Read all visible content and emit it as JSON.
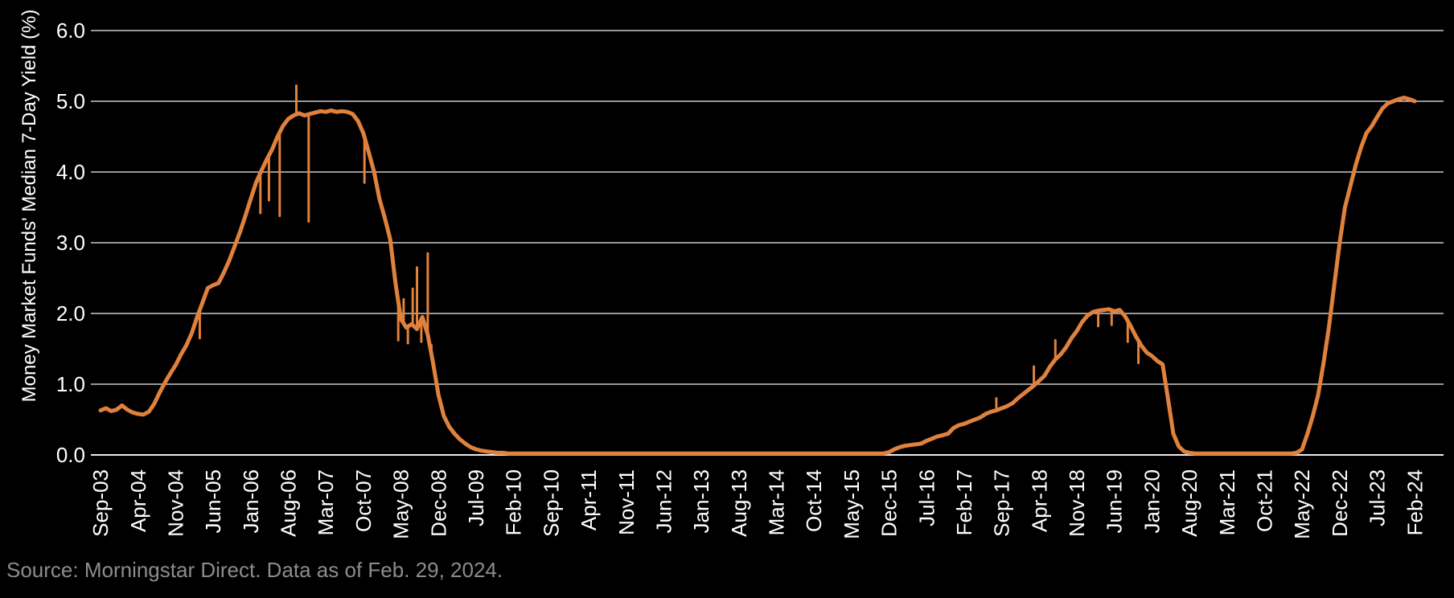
{
  "source_note": "Source: Morningstar Direct. Data as of Feb. 29, 2024.",
  "chart_data": {
    "type": "line",
    "title": "",
    "xlabel": "",
    "ylabel": "Money Market Funds' Median 7-Day Yield (%)",
    "ylim": [
      0,
      6
    ],
    "grid": true,
    "legend": false,
    "y_ticks": [
      "6.0",
      "5.0",
      "4.0",
      "3.0",
      "2.0",
      "1.0",
      "0.0"
    ],
    "x_tick_labels": [
      "Sep-03",
      "Apr-04",
      "Nov-04",
      "Jun-05",
      "Jan-06",
      "Aug-06",
      "Mar-07",
      "Oct-07",
      "May-08",
      "Dec-08",
      "Jul-09",
      "Feb-10",
      "Sep-10",
      "Apr-11",
      "Nov-11",
      "Jun-12",
      "Jan-13",
      "Aug-13",
      "Mar-14",
      "Oct-14",
      "May-15",
      "Dec-15",
      "Jul-16",
      "Feb-17",
      "Sep-17",
      "Apr-18",
      "Nov-18",
      "Jun-19",
      "Jan-20",
      "Aug-20",
      "Mar-21",
      "Oct-21",
      "May-22",
      "Dec-22",
      "Jul-23",
      "Feb-24"
    ],
    "x_tick_interval_months": 7,
    "x_start": "Sep-03",
    "x_end": "Feb-24",
    "series": [
      {
        "name": "Money Market Funds' Median 7-Day Yield (%)",
        "frequency": "monthly",
        "monthly_values": [
          0.63,
          0.66,
          0.62,
          0.64,
          0.7,
          0.64,
          0.6,
          0.58,
          0.57,
          0.61,
          0.72,
          0.88,
          1.02,
          1.15,
          1.27,
          1.42,
          1.55,
          1.72,
          1.95,
          2.15,
          2.36,
          2.4,
          2.43,
          2.58,
          2.75,
          2.95,
          3.15,
          3.38,
          3.62,
          3.85,
          4.02,
          4.18,
          4.32,
          4.5,
          4.65,
          4.75,
          4.8,
          4.83,
          4.8,
          4.82,
          4.84,
          4.86,
          4.85,
          4.87,
          4.85,
          4.86,
          4.85,
          4.82,
          4.72,
          4.55,
          4.28,
          4.0,
          3.62,
          3.35,
          3.05,
          2.42,
          1.92,
          1.8,
          1.85,
          1.78,
          1.95,
          1.7,
          1.3,
          0.85,
          0.55,
          0.4,
          0.3,
          0.22,
          0.16,
          0.11,
          0.08,
          0.06,
          0.05,
          0.04,
          0.03,
          0.03,
          0.02,
          0.02,
          0.02,
          0.02,
          0.02,
          0.02,
          0.02,
          0.02,
          0.02,
          0.02,
          0.02,
          0.02,
          0.02,
          0.02,
          0.02,
          0.02,
          0.02,
          0.02,
          0.02,
          0.02,
          0.02,
          0.02,
          0.02,
          0.02,
          0.02,
          0.02,
          0.02,
          0.02,
          0.02,
          0.02,
          0.02,
          0.02,
          0.02,
          0.02,
          0.02,
          0.02,
          0.02,
          0.02,
          0.02,
          0.02,
          0.02,
          0.02,
          0.02,
          0.02,
          0.02,
          0.02,
          0.02,
          0.02,
          0.02,
          0.02,
          0.02,
          0.02,
          0.02,
          0.02,
          0.02,
          0.02,
          0.02,
          0.02,
          0.02,
          0.02,
          0.02,
          0.02,
          0.02,
          0.02,
          0.02,
          0.02,
          0.02,
          0.02,
          0.02,
          0.02,
          0.02,
          0.04,
          0.08,
          0.11,
          0.13,
          0.14,
          0.15,
          0.16,
          0.2,
          0.23,
          0.26,
          0.28,
          0.3,
          0.38,
          0.42,
          0.44,
          0.47,
          0.5,
          0.53,
          0.58,
          0.61,
          0.63,
          0.66,
          0.69,
          0.73,
          0.8,
          0.86,
          0.92,
          0.98,
          1.05,
          1.12,
          1.25,
          1.35,
          1.42,
          1.52,
          1.65,
          1.75,
          1.88,
          1.97,
          2.02,
          2.04,
          2.05,
          2.06,
          2.03,
          2.05,
          1.96,
          1.83,
          1.68,
          1.55,
          1.45,
          1.4,
          1.33,
          1.28,
          0.8,
          0.3,
          0.12,
          0.05,
          0.03,
          0.02,
          0.02,
          0.02,
          0.02,
          0.02,
          0.02,
          0.02,
          0.02,
          0.02,
          0.02,
          0.02,
          0.02,
          0.02,
          0.02,
          0.02,
          0.02,
          0.02,
          0.02,
          0.02,
          0.03,
          0.08,
          0.3,
          0.55,
          0.85,
          1.3,
          1.8,
          2.4,
          3.0,
          3.5,
          3.8,
          4.1,
          4.35,
          4.55,
          4.65,
          4.78,
          4.9,
          4.97,
          5.0,
          5.03,
          5.05,
          5.03,
          5.0
        ]
      }
    ],
    "spikes": [
      [
        18.5,
        1.65
      ],
      [
        29.8,
        3.42
      ],
      [
        31.4,
        3.6
      ],
      [
        33.4,
        3.38
      ],
      [
        36.5,
        5.22
      ],
      [
        38.8,
        3.3
      ],
      [
        49.2,
        3.85
      ],
      [
        55.5,
        1.62
      ],
      [
        56.5,
        2.2
      ],
      [
        57.3,
        1.58
      ],
      [
        58.2,
        2.35
      ],
      [
        59.0,
        2.65
      ],
      [
        59.8,
        1.6
      ],
      [
        61.0,
        2.85
      ],
      [
        61.7,
        1.55
      ],
      [
        167,
        0.8
      ],
      [
        174,
        1.25
      ],
      [
        178,
        1.62
      ],
      [
        186,
        1.82
      ],
      [
        188.5,
        1.84
      ],
      [
        191.5,
        1.6
      ],
      [
        193.5,
        1.3
      ]
    ],
    "colors": {
      "background": "#000000",
      "line": "#E0813C",
      "grid": "#C9C9C9",
      "zero_line": "#EDEDED",
      "text": "#FFFFFF",
      "source_text": "#8C8C8C"
    }
  }
}
